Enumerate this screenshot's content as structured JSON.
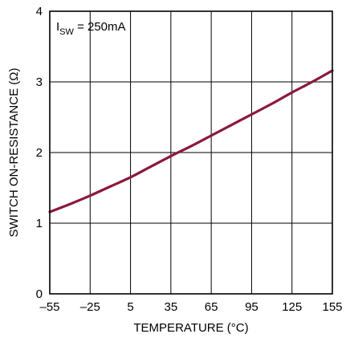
{
  "chart_data": {
    "type": "line",
    "xlabel": "TEMPERATURE (°C)",
    "ylabel": "SWITCH ON-RESISTANCE (Ω)",
    "xlim": [
      -55,
      155
    ],
    "ylim": [
      0,
      4
    ],
    "x_ticks": [
      -55,
      -25,
      5,
      35,
      65,
      95,
      125,
      155
    ],
    "x_tick_labels": [
      "–55",
      "–25",
      "5",
      "35",
      "65",
      "95",
      "125",
      "155"
    ],
    "y_ticks": [
      0,
      1,
      2,
      3,
      4
    ],
    "y_tick_labels": [
      "0",
      "1",
      "2",
      "3",
      "4"
    ],
    "grid": true,
    "annotation": {
      "main": "I",
      "sub": "SW",
      "rest": " = 250mA"
    },
    "line_color": "#8b1a3a",
    "series": [
      {
        "x": [
          -55,
          -40,
          -25,
          -10,
          5,
          20,
          35,
          50,
          65,
          80,
          95,
          110,
          125,
          140,
          155
        ],
        "y": [
          1.16,
          1.27,
          1.39,
          1.52,
          1.65,
          1.8,
          1.95,
          2.09,
          2.24,
          2.39,
          2.54,
          2.69,
          2.85,
          3.0,
          3.16
        ]
      }
    ]
  }
}
